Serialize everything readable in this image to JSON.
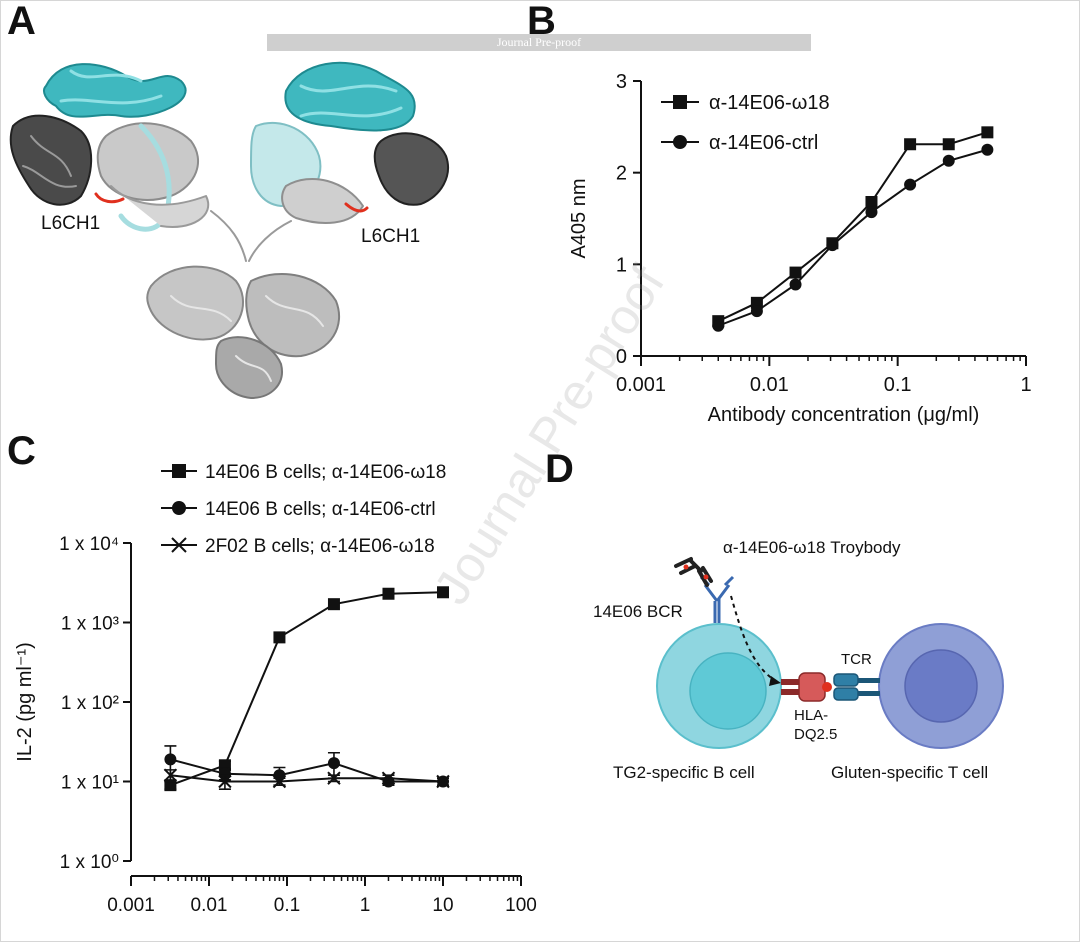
{
  "panels": {
    "a": "A",
    "b": "B",
    "c": "C",
    "d": "D"
  },
  "banner": "Journal Pre-proof",
  "watermark": "Journal Pre-proof",
  "panel_a": {
    "label_left": "L6CH1",
    "label_right": "L6CH1"
  },
  "panel_d": {
    "troybody_label": "α-14E06-ω18 Troybody",
    "bcr_label": "14E06 BCR",
    "tcr_label": "TCR",
    "hla_line1": "HLA-",
    "hla_line2": "DQ2.5",
    "b_cell_label": "TG2-specific B cell",
    "t_cell_label": "Gluten-specific T cell"
  },
  "chart_data": [
    {
      "panel": "B",
      "type": "line",
      "xscale": "log",
      "xlim": [
        0.001,
        1
      ],
      "ylim": [
        0,
        3
      ],
      "xticks": [
        0.001,
        0.01,
        0.1,
        1
      ],
      "xtick_labels": [
        "0.001",
        "0.01",
        "0.1",
        "1"
      ],
      "yticks": [
        0,
        1,
        2,
        3
      ],
      "ytick_labels": [
        "0",
        "1",
        "2",
        "3"
      ],
      "xlabel": "Antibody concentration (μg/ml)",
      "ylabel": "A405 nm",
      "legend": "top-left",
      "series": [
        {
          "name": "α-14E06-ω18",
          "marker": "square",
          "x": [
            0.004,
            0.008,
            0.016,
            0.031,
            0.0625,
            0.125,
            0.25,
            0.5
          ],
          "y": [
            0.38,
            0.58,
            0.91,
            1.23,
            1.68,
            2.31,
            2.31,
            2.44
          ]
        },
        {
          "name": "α-14E06-ctrl",
          "marker": "circle",
          "x": [
            0.004,
            0.008,
            0.016,
            0.031,
            0.0625,
            0.125,
            0.25,
            0.5
          ],
          "y": [
            0.33,
            0.49,
            0.78,
            1.21,
            1.57,
            1.87,
            2.13,
            2.25
          ]
        }
      ]
    },
    {
      "panel": "C",
      "type": "line",
      "xscale": "log",
      "yscale": "log",
      "xlim": [
        0.001,
        100
      ],
      "ylim": [
        1,
        10000
      ],
      "xticks": [
        0.001,
        0.01,
        0.1,
        1,
        10,
        100
      ],
      "xtick_labels": [
        "0.001",
        "0.01",
        "0.1",
        "1",
        "10",
        "100"
      ],
      "yticks": [
        1,
        10,
        100,
        1000,
        10000
      ],
      "ytick_labels": [
        "1 x 10⁰",
        "1 x 10¹",
        "1 x 10²",
        "1 x 10³",
        "1 x 10⁴"
      ],
      "xlabel": "Antibody concentration (μg/ml)",
      "ylabel": "IL-2 (pg ml⁻¹)",
      "legend": "top",
      "series": [
        {
          "name": "14E06 B cells; α-14E06-ω18",
          "marker": "square",
          "x": [
            0.0032,
            0.016,
            0.08,
            0.4,
            2,
            10
          ],
          "y": [
            9,
            16,
            650,
            1700,
            2300,
            2400
          ],
          "err": [
            1,
            2,
            0,
            0,
            0,
            0
          ]
        },
        {
          "name": "14E06 B cells; α-14E06-ctrl",
          "marker": "circle",
          "x": [
            0.0032,
            0.016,
            0.08,
            0.4,
            2,
            10
          ],
          "y": [
            19,
            12.5,
            12,
            17,
            10,
            10
          ],
          "err": [
            9,
            2,
            3,
            6,
            1,
            1
          ]
        },
        {
          "name": " 2F02 B cells; α-14E06-ω18",
          "marker": "x",
          "x": [
            0.0032,
            0.016,
            0.08,
            0.4,
            2,
            10
          ],
          "y": [
            12,
            10,
            10,
            11,
            11,
            10
          ],
          "err": [
            2,
            2,
            1,
            1,
            1,
            1
          ]
        }
      ]
    }
  ]
}
